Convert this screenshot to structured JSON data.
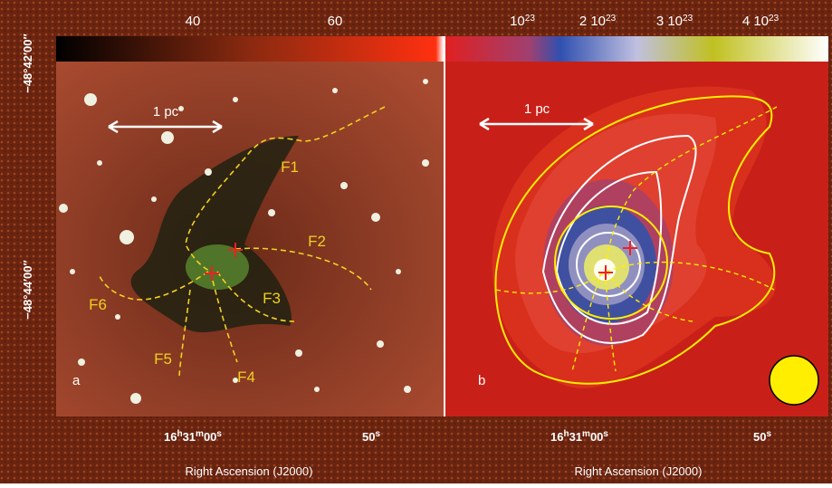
{
  "dec_ticks": [
    "−48°42′00″",
    "−48°44′00″"
  ],
  "panel_a": {
    "colorbar_ticks": [
      "40",
      "60"
    ],
    "label": "a",
    "scale_bar": "1 pc",
    "filaments": [
      "F1",
      "F2",
      "F3",
      "F4",
      "F5",
      "F6"
    ],
    "ra_ticks": [
      [
        "16",
        "h",
        "31",
        "m",
        "00",
        "s"
      ],
      [
        "50",
        "s"
      ]
    ],
    "x_axis_label": "Right Ascension (J2000)"
  },
  "panel_b": {
    "colorbar_ticks": [
      [
        "10",
        "23"
      ],
      [
        "2 10",
        "23"
      ],
      [
        "3 10",
        "23"
      ],
      [
        "4 10",
        "23"
      ]
    ],
    "label": "b",
    "scale_bar": "1 pc",
    "ra_ticks": [
      [
        "16",
        "h",
        "31",
        "m",
        "00",
        "s"
      ],
      [
        "50",
        "s"
      ]
    ],
    "x_axis_label": "Right Ascension (J2000)"
  }
}
